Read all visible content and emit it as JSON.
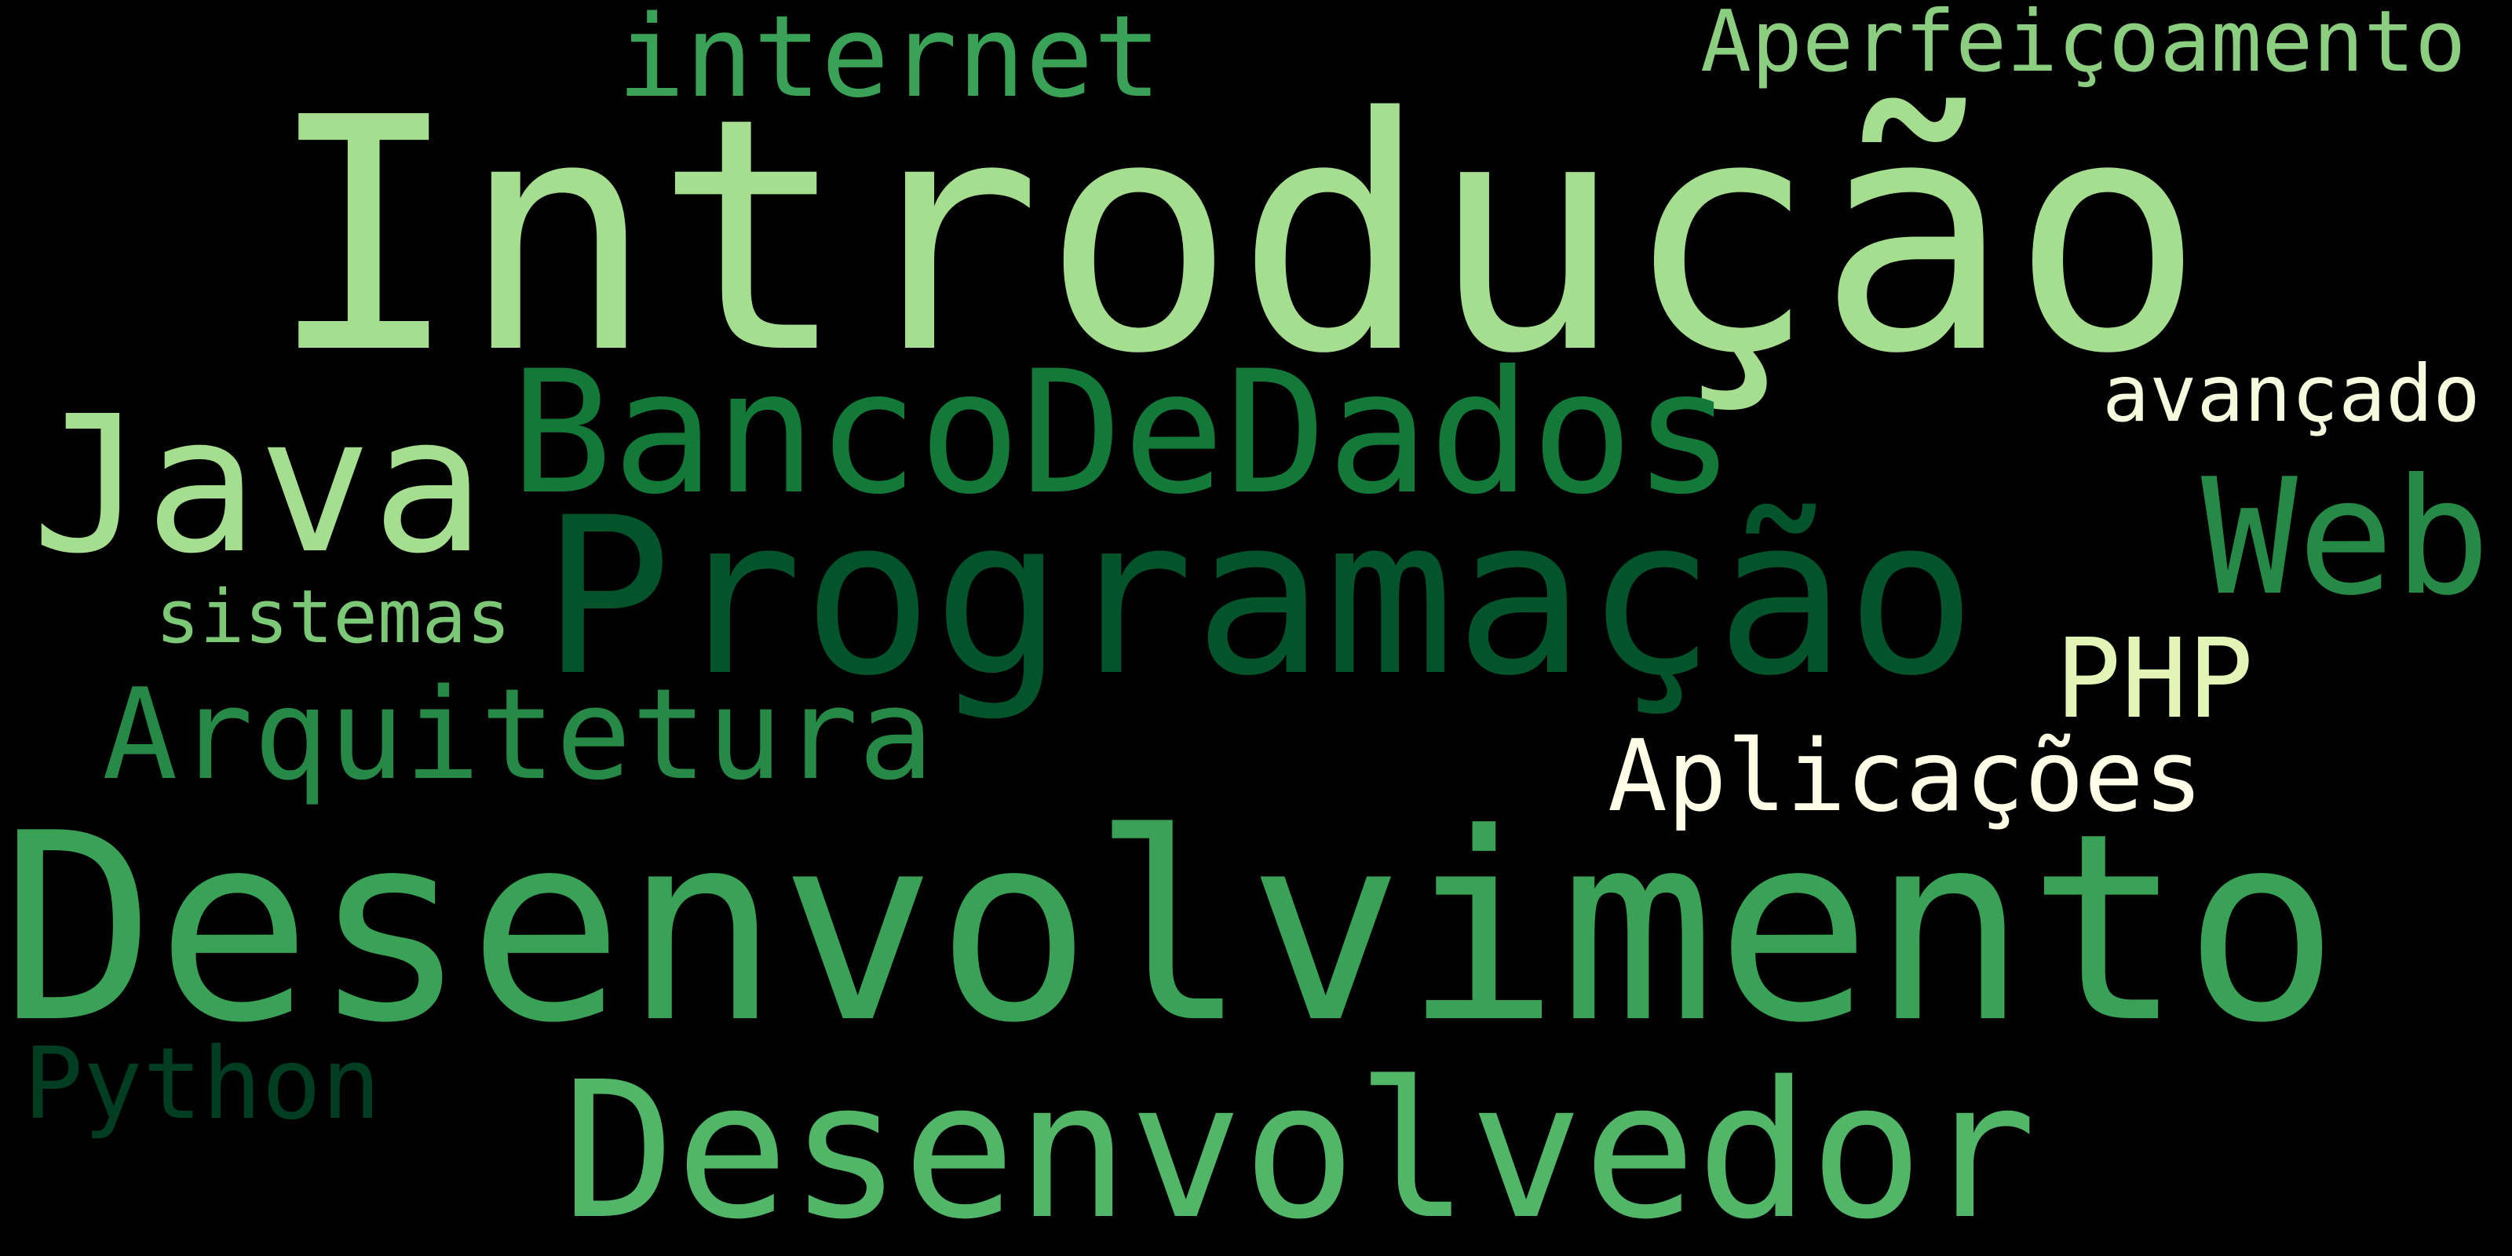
{
  "words": [
    {
      "id": "introducao",
      "text": "Introdução",
      "color": "#a6de8f"
    },
    {
      "id": "desenvolvimento",
      "text": "Desenvolvimento",
      "color": "#3aa257"
    },
    {
      "id": "programacao",
      "text": "Programação",
      "color": "#03542a"
    },
    {
      "id": "bancodedados",
      "text": "BancoDeDados",
      "color": "#137939"
    },
    {
      "id": "java",
      "text": "Java",
      "color": "#a6de8f"
    },
    {
      "id": "desenvolvedor",
      "text": "Desenvolvedor",
      "color": "#52b668"
    },
    {
      "id": "web",
      "text": "Web",
      "color": "#268a46"
    },
    {
      "id": "arquitetura",
      "text": "Arquitetura",
      "color": "#268a46"
    },
    {
      "id": "internet",
      "text": "internet",
      "color": "#3aa257"
    },
    {
      "id": "aperfeicoamento",
      "text": "Aperfeiçoamento",
      "color": "#8cce80"
    },
    {
      "id": "avancado",
      "text": "avançado",
      "color": "#f5fbdc"
    },
    {
      "id": "php",
      "text": "PHP",
      "color": "#e2f4b6"
    },
    {
      "id": "aplicacoes",
      "text": "Aplicações",
      "color": "#fffde6"
    },
    {
      "id": "sistemas",
      "text": "sistemas",
      "color": "#7cc877"
    },
    {
      "id": "python",
      "text": "Python",
      "color": "#013d20"
    }
  ]
}
